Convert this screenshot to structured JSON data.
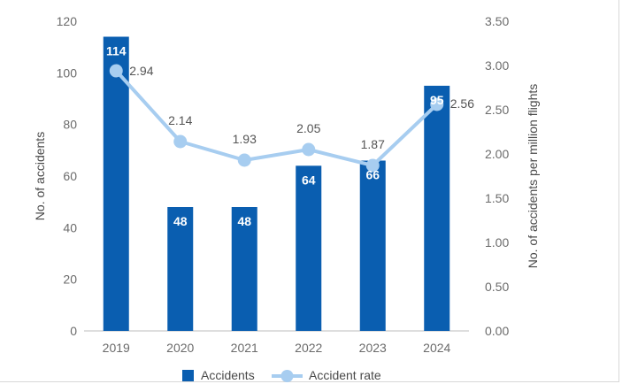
{
  "chart_data": {
    "type": "bar",
    "categories": [
      "2019",
      "2020",
      "2021",
      "2022",
      "2023",
      "2024"
    ],
    "series": [
      {
        "name": "Accidents",
        "kind": "bar",
        "axis": "left",
        "values": [
          114,
          48,
          48,
          64,
          66,
          95
        ],
        "labels": [
          "114",
          "48",
          "48",
          "64",
          "66",
          "95"
        ],
        "color": "#0a5eb0"
      },
      {
        "name": "Accident rate",
        "kind": "line",
        "axis": "right",
        "values": [
          2.94,
          2.14,
          1.93,
          2.05,
          1.87,
          2.56
        ],
        "labels": [
          "2.94",
          "2.14",
          "1.93",
          "2.05",
          "1.87",
          "2.56"
        ],
        "color": "#a7cdf0"
      }
    ],
    "title": "",
    "xlabel": "",
    "ylabel": "No. of accidents",
    "y2label": "No. of accidents per million flights",
    "ylim": [
      0,
      120
    ],
    "y2lim": [
      0,
      3.5
    ],
    "yticks": [
      "0",
      "20",
      "40",
      "60",
      "80",
      "100",
      "120"
    ],
    "y2ticks": [
      "0.00",
      "0.50",
      "1.00",
      "1.50",
      "2.00",
      "2.50",
      "3.00",
      "3.50"
    ],
    "grid": false,
    "legend": {
      "position": "bottom-center",
      "items": [
        "Accidents",
        "Accident rate"
      ]
    }
  }
}
